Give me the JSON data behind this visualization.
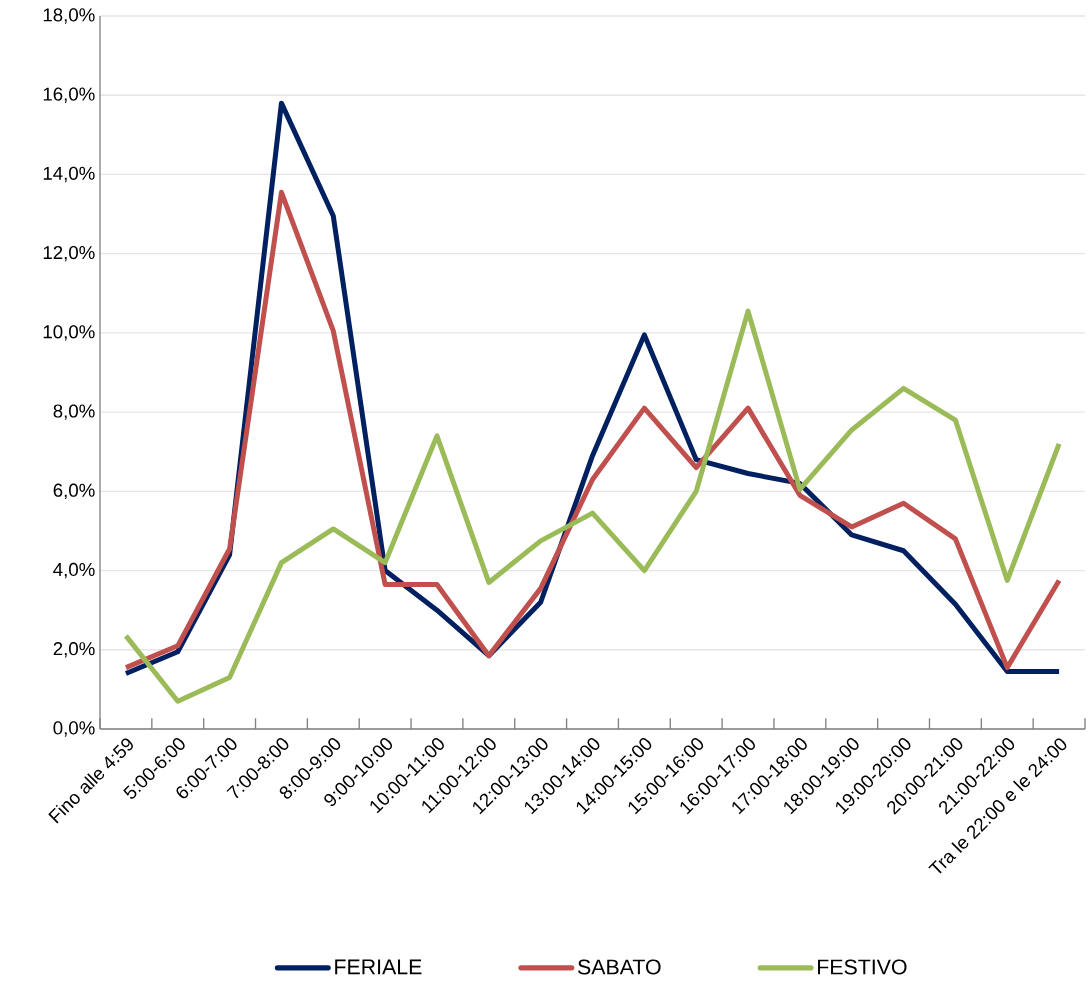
{
  "chart_data": {
    "type": "line",
    "categories": [
      "Fino alle 4:59",
      "5:00-6:00",
      "6:00-7:00",
      "7:00-8:00",
      "8:00-9:00",
      "9:00-10:00",
      "10:00-11:00",
      "11:00-12:00",
      "12:00-13:00",
      "13:00-14:00",
      "14:00-15:00",
      "15:00-16:00",
      "16:00-17:00",
      "17:00-18:00",
      "18:00-19:00",
      "19:00-20:00",
      "20:00-21:00",
      "21:00-22:00",
      "Tra le 22:00 e le 24:00"
    ],
    "series": [
      {
        "name": "FERIALE",
        "color": "#002060",
        "values": [
          1.4,
          1.95,
          4.4,
          15.8,
          12.95,
          4.0,
          3.0,
          1.85,
          3.2,
          6.9,
          9.95,
          6.8,
          6.45,
          6.2,
          4.9,
          4.5,
          3.15,
          1.45,
          1.45
        ]
      },
      {
        "name": "SABATO",
        "color": "#c0504d",
        "values": [
          1.55,
          2.1,
          4.55,
          13.55,
          10.05,
          3.65,
          3.65,
          1.85,
          3.55,
          6.3,
          8.1,
          6.6,
          8.1,
          5.9,
          5.1,
          5.7,
          4.8,
          1.55,
          3.75
        ]
      },
      {
        "name": "FESTIVO",
        "color": "#9bbb59",
        "values": [
          2.35,
          0.7,
          1.3,
          4.2,
          5.05,
          4.2,
          7.4,
          3.7,
          4.75,
          5.45,
          4.0,
          6.0,
          10.55,
          6.05,
          7.55,
          8.6,
          7.8,
          3.75,
          7.2
        ]
      }
    ],
    "ylim": [
      0,
      18
    ],
    "yticks": [
      {
        "value": 0,
        "label": "0,0%"
      },
      {
        "value": 2,
        "label": "2,0%"
      },
      {
        "value": 4,
        "label": "4,0%"
      },
      {
        "value": 6,
        "label": "6,0%"
      },
      {
        "value": 8,
        "label": "8,0%"
      },
      {
        "value": 10,
        "label": "10,0%"
      },
      {
        "value": 12,
        "label": "12,0%"
      },
      {
        "value": 14,
        "label": "14,0%"
      },
      {
        "value": 16,
        "label": "16,0%"
      },
      {
        "value": 18,
        "label": "18,0%"
      }
    ],
    "grid": "y",
    "legend": "bottom",
    "marker": "none",
    "line_style": "solid"
  }
}
